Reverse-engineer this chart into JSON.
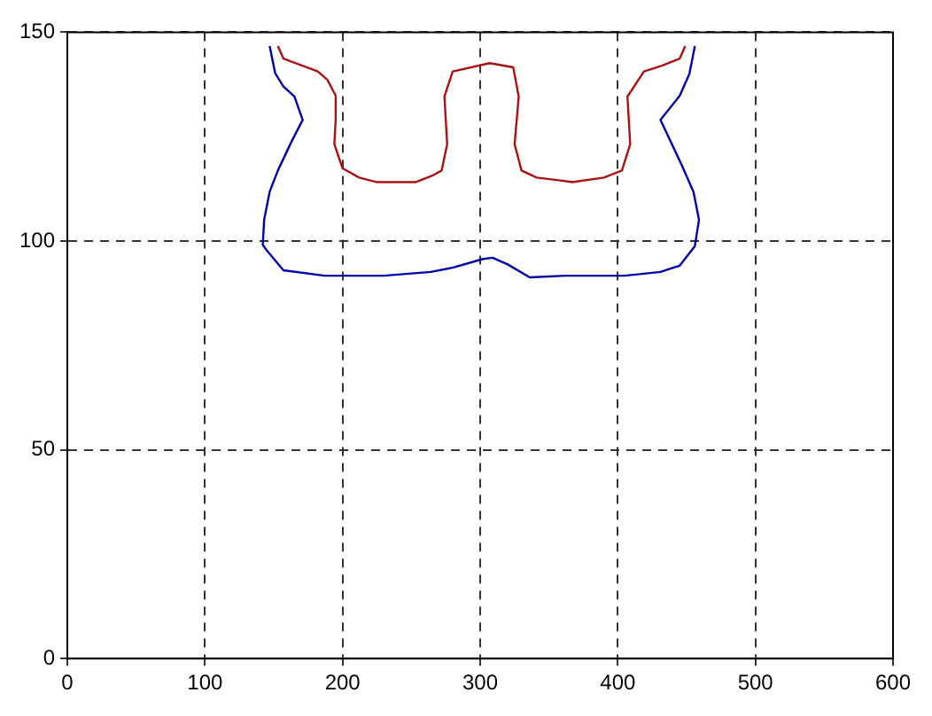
{
  "chart_data": {
    "type": "line",
    "xlim": [
      0,
      600
    ],
    "ylim": [
      0,
      150
    ],
    "xticks": [
      0,
      100,
      200,
      300,
      400,
      500,
      600
    ],
    "yticks": [
      0,
      50,
      100,
      150
    ],
    "grid": true,
    "legend": false,
    "marker": "none",
    "line_style": "solid",
    "series": [
      {
        "color": "#0000aa",
        "x": [
          147,
          151,
          157,
          165,
          171,
          163,
          153,
          147,
          143,
          142,
          145,
          157,
          187,
          230,
          264,
          281,
          302,
          309,
          320,
          336,
          362,
          405,
          431,
          445,
          456,
          459,
          455,
          446,
          431,
          445,
          452,
          456
        ],
        "values": [
          146.7,
          140.2,
          137,
          134.6,
          129,
          123.9,
          116.9,
          111.8,
          105.1,
          99.1,
          97.7,
          93,
          91.7,
          91.7,
          92.6,
          93.7,
          95.7,
          96,
          94.4,
          91.3,
          91.7,
          91.7,
          92.6,
          94.1,
          98.8,
          105.1,
          111.8,
          118.5,
          129,
          134.8,
          140,
          146.7
        ]
      },
      {
        "color": "#aa1111",
        "x": [
          153,
          157,
          182,
          189,
          195,
          195,
          194,
          200,
          212,
          225,
          253,
          266,
          272,
          276,
          274,
          280,
          307,
          324,
          328,
          325,
          330,
          341,
          358,
          367,
          390,
          403,
          409,
          407,
          419,
          432,
          445,
          449
        ],
        "values": [
          146.7,
          143.7,
          140.6,
          138.6,
          134.8,
          129.2,
          123.2,
          117.4,
          115.2,
          114.1,
          114.1,
          115.8,
          116.9,
          123.2,
          134.6,
          140.6,
          142.6,
          141.6,
          134.6,
          123.2,
          116.9,
          115.2,
          114.5,
          114.1,
          115.2,
          116.9,
          123.2,
          134.6,
          140.6,
          142,
          143.7,
          146.7
        ]
      }
    ]
  }
}
